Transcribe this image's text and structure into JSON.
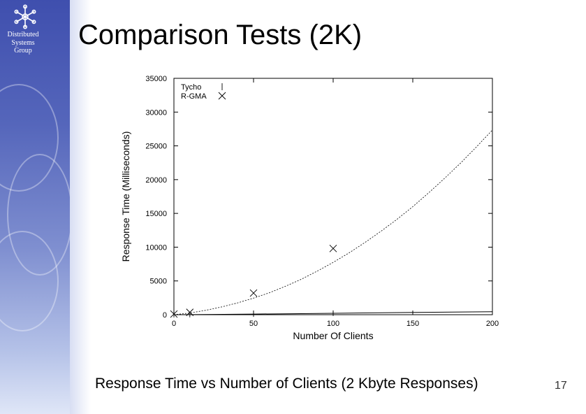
{
  "slide": {
    "title": "Comparison Tests (2K)",
    "caption": "Response Time vs Number of Clients (2 Kbyte Responses)",
    "page_number": "17",
    "group_name": "Distributed\nSystems\nGroup",
    "logo_icon": "snowflake-network-icon",
    "sidebar_color": "#4a5bb5"
  },
  "chart_data": {
    "type": "line",
    "title": "",
    "xlabel": "Number Of Clients",
    "ylabel": "Response Time (Milliseconds)",
    "xlim": [
      0,
      200
    ],
    "ylim": [
      0,
      35000
    ],
    "xticks": [
      0,
      50,
      100,
      150,
      200
    ],
    "yticks": [
      0,
      5000,
      10000,
      15000,
      20000,
      25000,
      30000,
      35000
    ],
    "grid": false,
    "legend_position": "top-left",
    "series": [
      {
        "name": "Tycho",
        "marker": "vertical-tick",
        "points": [
          [
            0,
            10
          ],
          [
            10,
            25
          ],
          [
            50,
            90
          ],
          [
            100,
            220
          ]
        ],
        "fit": [
          [
            0,
            0
          ],
          [
            25,
            40
          ],
          [
            50,
            90
          ],
          [
            75,
            150
          ],
          [
            100,
            210
          ],
          [
            125,
            270
          ],
          [
            150,
            330
          ],
          [
            175,
            390
          ],
          [
            200,
            450
          ]
        ]
      },
      {
        "name": "R-GMA",
        "marker": "x",
        "points": [
          [
            0,
            100
          ],
          [
            10,
            350
          ],
          [
            50,
            3200
          ],
          [
            100,
            9800
          ]
        ],
        "fit": [
          [
            0,
            0
          ],
          [
            10,
            250
          ],
          [
            20,
            650
          ],
          [
            30,
            1150
          ],
          [
            40,
            1750
          ],
          [
            50,
            2450
          ],
          [
            60,
            3250
          ],
          [
            70,
            4200
          ],
          [
            80,
            5250
          ],
          [
            90,
            6450
          ],
          [
            100,
            7750
          ],
          [
            110,
            9150
          ],
          [
            120,
            10700
          ],
          [
            130,
            12350
          ],
          [
            140,
            14100
          ],
          [
            150,
            16000
          ],
          [
            160,
            18050
          ],
          [
            170,
            20200
          ],
          [
            180,
            22450
          ],
          [
            190,
            24850
          ],
          [
            200,
            27350
          ]
        ]
      }
    ]
  }
}
